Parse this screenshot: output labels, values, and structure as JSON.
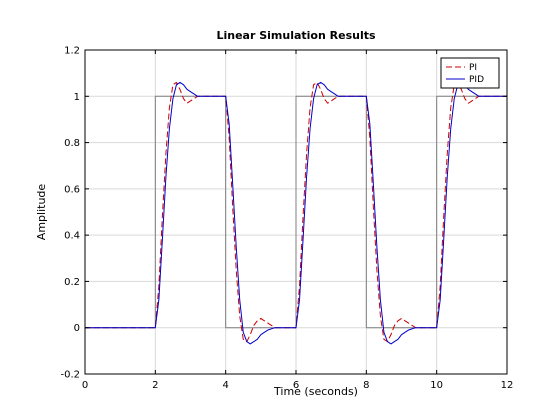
{
  "chart_data": {
    "type": "line",
    "title": "Linear Simulation Results",
    "xlabel": "Time (seconds)",
    "ylabel": "Amplitude",
    "xlim": [
      0,
      12
    ],
    "ylim": [
      -0.2,
      1.2
    ],
    "xticks": [
      0,
      2,
      4,
      6,
      8,
      10,
      12
    ],
    "yticks": [
      -0.2,
      0,
      0.2,
      0.4,
      0.6,
      0.8,
      1.0,
      1.2
    ],
    "xtick_labels": [
      "0",
      "2",
      "4",
      "6",
      "8",
      "10",
      "12"
    ],
    "ytick_labels": [
      "-0.2",
      "0",
      "0.2",
      "0.4",
      "0.6",
      "0.8",
      "1",
      "1.2"
    ],
    "grid": true,
    "legend_position": "top-right",
    "input": {
      "color": "#7f7f7f",
      "x": [
        0,
        2,
        2,
        4,
        4,
        6,
        6,
        8,
        8,
        10,
        10,
        12
      ],
      "y": [
        0,
        0,
        1,
        1,
        0,
        0,
        1,
        1,
        0,
        0,
        1,
        1
      ]
    },
    "series": [
      {
        "name": "PI",
        "color": "#cc0000",
        "dash": true,
        "x": [
          0,
          2,
          2.1,
          2.2,
          2.3,
          2.4,
          2.5,
          2.6,
          2.7,
          2.8,
          2.9,
          3.0,
          3.1,
          3.2,
          3.4,
          3.6,
          4,
          4.1,
          4.2,
          4.3,
          4.4,
          4.5,
          4.6,
          4.7,
          4.8,
          4.9,
          5.0,
          5.1,
          5.2,
          5.4,
          5.6,
          6,
          6.1,
          6.2,
          6.3,
          6.4,
          6.5,
          6.6,
          6.7,
          6.8,
          6.9,
          7.0,
          7.1,
          7.2,
          7.4,
          7.6,
          8,
          8.1,
          8.2,
          8.3,
          8.4,
          8.5,
          8.6,
          8.7,
          8.8,
          8.9,
          9.0,
          9.1,
          9.2,
          9.4,
          9.6,
          10,
          10.1,
          10.2,
          10.3,
          10.4,
          10.5,
          10.6,
          10.7,
          10.8,
          10.9,
          11.0,
          11.1,
          11.2,
          11.4,
          11.6,
          12
        ],
        "y": [
          0,
          0,
          0.18,
          0.48,
          0.75,
          0.95,
          1.05,
          1.06,
          1.03,
          0.99,
          0.97,
          0.98,
          0.99,
          1.0,
          1.0,
          1.0,
          1.0,
          0.82,
          0.52,
          0.25,
          0.05,
          -0.05,
          -0.06,
          -0.03,
          0.01,
          0.03,
          0.04,
          0.03,
          0.02,
          0.0,
          0.0,
          0.0,
          0.18,
          0.48,
          0.75,
          0.95,
          1.05,
          1.06,
          1.03,
          0.99,
          0.97,
          0.98,
          0.99,
          1.0,
          1.0,
          1.0,
          1.0,
          0.82,
          0.52,
          0.25,
          0.05,
          -0.05,
          -0.06,
          -0.03,
          0.01,
          0.03,
          0.04,
          0.03,
          0.02,
          0.0,
          0.0,
          0.0,
          0.18,
          0.48,
          0.75,
          0.95,
          1.05,
          1.06,
          1.03,
          0.99,
          0.97,
          0.98,
          0.99,
          1.0,
          1.0,
          1.0,
          1.0
        ]
      },
      {
        "name": "PID",
        "color": "#0000cc",
        "dash": false,
        "x": [
          0,
          2,
          2.1,
          2.2,
          2.3,
          2.4,
          2.5,
          2.6,
          2.7,
          2.8,
          2.9,
          3.0,
          3.1,
          3.2,
          3.4,
          3.6,
          4,
          4.1,
          4.2,
          4.3,
          4.4,
          4.5,
          4.6,
          4.7,
          4.8,
          4.9,
          5.0,
          5.1,
          5.2,
          5.4,
          5.6,
          6,
          6.1,
          6.2,
          6.3,
          6.4,
          6.5,
          6.6,
          6.7,
          6.8,
          6.9,
          7.0,
          7.1,
          7.2,
          7.4,
          7.6,
          8,
          8.1,
          8.2,
          8.3,
          8.4,
          8.5,
          8.6,
          8.7,
          8.8,
          8.9,
          9.0,
          9.1,
          9.2,
          9.4,
          9.6,
          10,
          10.1,
          10.2,
          10.3,
          10.4,
          10.5,
          10.6,
          10.7,
          10.8,
          10.9,
          11.0,
          11.1,
          11.2,
          11.4,
          11.6,
          12
        ],
        "y": [
          0,
          0,
          0.12,
          0.38,
          0.65,
          0.86,
          0.99,
          1.05,
          1.06,
          1.05,
          1.03,
          1.02,
          1.01,
          1.0,
          1.0,
          1.0,
          1.0,
          0.88,
          0.62,
          0.35,
          0.12,
          -0.02,
          -0.06,
          -0.07,
          -0.06,
          -0.05,
          -0.03,
          -0.02,
          -0.01,
          0.0,
          0.0,
          0.0,
          0.12,
          0.38,
          0.65,
          0.86,
          0.99,
          1.05,
          1.06,
          1.05,
          1.03,
          1.02,
          1.01,
          1.0,
          1.0,
          1.0,
          1.0,
          0.88,
          0.62,
          0.35,
          0.12,
          -0.02,
          -0.06,
          -0.07,
          -0.06,
          -0.05,
          -0.03,
          -0.02,
          -0.01,
          0.0,
          0.0,
          0.0,
          0.12,
          0.38,
          0.65,
          0.86,
          0.99,
          1.05,
          1.06,
          1.05,
          1.03,
          1.02,
          1.01,
          1.0,
          1.0,
          1.0,
          1.0
        ]
      }
    ]
  }
}
